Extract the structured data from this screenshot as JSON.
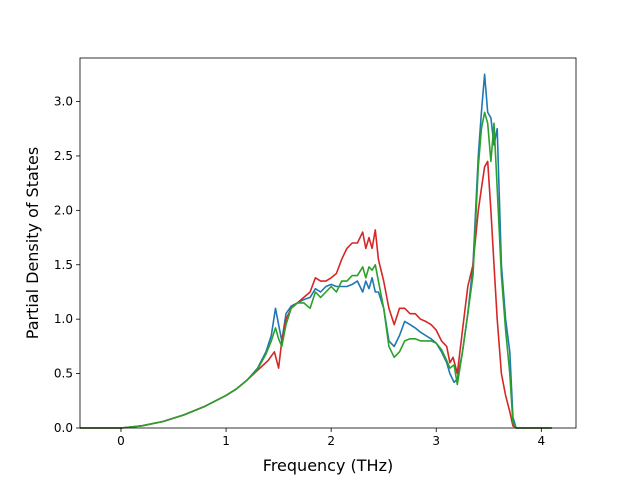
{
  "chart_data": {
    "type": "line",
    "title": "",
    "xlabel": "Frequency (THz)",
    "ylabel": "Partial Density of States",
    "xlim": [
      -0.39,
      4.33
    ],
    "ylim": [
      0.0,
      3.4
    ],
    "xticks": [
      0,
      1,
      2,
      3,
      4
    ],
    "yticks": [
      0.0,
      0.5,
      1.0,
      1.5,
      2.0,
      2.5,
      3.0
    ],
    "xtick_labels": [
      "0",
      "1",
      "2",
      "3",
      "4"
    ],
    "ytick_labels": [
      "0.0",
      "0.5",
      "1.0",
      "1.5",
      "2.0",
      "2.5",
      "3.0"
    ],
    "grid": false,
    "legend": "none",
    "series": [
      {
        "color": "#1f77b4",
        "x": [
          -0.39,
          0.0,
          0.2,
          0.4,
          0.6,
          0.8,
          1.0,
          1.1,
          1.2,
          1.3,
          1.38,
          1.43,
          1.47,
          1.5,
          1.53,
          1.57,
          1.62,
          1.68,
          1.74,
          1.8,
          1.85,
          1.9,
          1.95,
          2.0,
          2.05,
          2.1,
          2.15,
          2.2,
          2.25,
          2.3,
          2.33,
          2.36,
          2.39,
          2.42,
          2.45,
          2.5,
          2.55,
          2.6,
          2.65,
          2.7,
          2.75,
          2.8,
          2.85,
          2.9,
          2.95,
          3.0,
          3.05,
          3.1,
          3.13,
          3.17,
          3.2,
          3.25,
          3.3,
          3.35,
          3.4,
          3.43,
          3.46,
          3.49,
          3.52,
          3.55,
          3.58,
          3.62,
          3.66,
          3.7,
          3.73,
          3.76,
          3.8,
          4.1
        ],
        "y": [
          0.0,
          0.0,
          0.02,
          0.06,
          0.12,
          0.2,
          0.3,
          0.36,
          0.44,
          0.55,
          0.7,
          0.85,
          1.1,
          0.95,
          0.8,
          1.05,
          1.12,
          1.15,
          1.18,
          1.2,
          1.28,
          1.25,
          1.3,
          1.32,
          1.3,
          1.3,
          1.3,
          1.32,
          1.35,
          1.25,
          1.35,
          1.28,
          1.38,
          1.25,
          1.25,
          1.1,
          0.8,
          0.75,
          0.85,
          0.98,
          0.95,
          0.92,
          0.88,
          0.85,
          0.82,
          0.78,
          0.7,
          0.6,
          0.5,
          0.42,
          0.45,
          0.7,
          1.05,
          1.5,
          2.5,
          2.9,
          3.25,
          2.9,
          2.85,
          2.6,
          2.75,
          1.5,
          1.0,
          0.7,
          0.1,
          0.0,
          0.0,
          0.0
        ]
      },
      {
        "color": "#d62728",
        "x": [
          -0.39,
          0.0,
          0.2,
          0.4,
          0.6,
          0.8,
          1.0,
          1.1,
          1.2,
          1.3,
          1.4,
          1.46,
          1.5,
          1.53,
          1.57,
          1.62,
          1.68,
          1.74,
          1.8,
          1.85,
          1.9,
          1.95,
          2.0,
          2.05,
          2.1,
          2.15,
          2.2,
          2.25,
          2.3,
          2.33,
          2.36,
          2.39,
          2.42,
          2.45,
          2.5,
          2.55,
          2.6,
          2.65,
          2.7,
          2.75,
          2.8,
          2.85,
          2.9,
          2.95,
          3.0,
          3.05,
          3.1,
          3.13,
          3.16,
          3.2,
          3.25,
          3.3,
          3.35,
          3.4,
          3.43,
          3.46,
          3.49,
          3.52,
          3.55,
          3.58,
          3.62,
          3.66,
          3.7,
          3.73,
          3.76,
          3.8,
          4.1
        ],
        "y": [
          0.0,
          0.0,
          0.02,
          0.06,
          0.12,
          0.2,
          0.3,
          0.36,
          0.44,
          0.53,
          0.62,
          0.7,
          0.55,
          0.8,
          1.0,
          1.1,
          1.15,
          1.2,
          1.25,
          1.38,
          1.35,
          1.35,
          1.38,
          1.42,
          1.55,
          1.65,
          1.7,
          1.7,
          1.8,
          1.65,
          1.75,
          1.65,
          1.82,
          1.55,
          1.35,
          1.1,
          0.95,
          1.1,
          1.1,
          1.05,
          1.05,
          1.0,
          0.98,
          0.95,
          0.9,
          0.8,
          0.75,
          0.6,
          0.65,
          0.5,
          0.9,
          1.3,
          1.5,
          2.0,
          2.2,
          2.4,
          2.45,
          2.0,
          1.5,
          1.0,
          0.5,
          0.3,
          0.15,
          0.02,
          0.0,
          0.0,
          0.0
        ]
      },
      {
        "color": "#2ca02c",
        "x": [
          -0.39,
          0.0,
          0.2,
          0.4,
          0.6,
          0.8,
          1.0,
          1.1,
          1.2,
          1.3,
          1.38,
          1.43,
          1.47,
          1.5,
          1.53,
          1.57,
          1.62,
          1.68,
          1.74,
          1.8,
          1.85,
          1.9,
          1.95,
          2.0,
          2.05,
          2.1,
          2.15,
          2.2,
          2.25,
          2.3,
          2.33,
          2.36,
          2.39,
          2.42,
          2.45,
          2.5,
          2.55,
          2.6,
          2.65,
          2.7,
          2.75,
          2.8,
          2.85,
          2.9,
          2.95,
          3.0,
          3.05,
          3.1,
          3.13,
          3.17,
          3.2,
          3.25,
          3.3,
          3.35,
          3.4,
          3.43,
          3.46,
          3.49,
          3.52,
          3.55,
          3.58,
          3.62,
          3.66,
          3.7,
          3.73,
          3.76,
          3.8,
          4.1
        ],
        "y": [
          0.0,
          0.0,
          0.02,
          0.06,
          0.12,
          0.2,
          0.3,
          0.36,
          0.44,
          0.54,
          0.68,
          0.8,
          0.92,
          0.82,
          0.75,
          0.95,
          1.1,
          1.15,
          1.15,
          1.1,
          1.25,
          1.2,
          1.25,
          1.3,
          1.25,
          1.35,
          1.35,
          1.4,
          1.4,
          1.48,
          1.38,
          1.48,
          1.45,
          1.5,
          1.35,
          1.1,
          0.75,
          0.65,
          0.7,
          0.8,
          0.82,
          0.82,
          0.8,
          0.8,
          0.8,
          0.78,
          0.72,
          0.62,
          0.55,
          0.58,
          0.4,
          0.7,
          1.05,
          1.4,
          2.4,
          2.75,
          2.9,
          2.8,
          2.45,
          2.8,
          2.2,
          1.4,
          0.9,
          0.5,
          0.05,
          0.0,
          0.0,
          0.0
        ]
      }
    ]
  }
}
